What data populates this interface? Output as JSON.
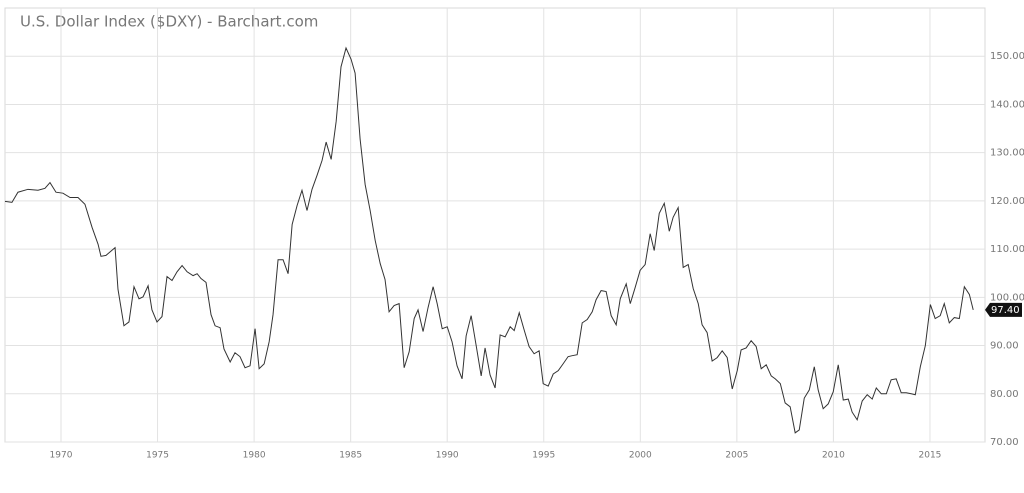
{
  "chart_data": {
    "type": "line",
    "title": "U.S. Dollar Index ($DXY) - Barchart.com",
    "xlim": [
      1967.1,
      2017.85
    ],
    "ylim": [
      70,
      160
    ],
    "xticks": [
      1970,
      1975,
      1980,
      1985,
      1990,
      1995,
      2000,
      2005,
      2010,
      2015
    ],
    "yticks": [
      {
        "value": 70,
        "label": "70.00"
      },
      {
        "value": 80,
        "label": "80.00"
      },
      {
        "value": 90,
        "label": "90.00"
      },
      {
        "value": 100,
        "label": "100.00"
      },
      {
        "value": 110,
        "label": "110.00"
      },
      {
        "value": 120,
        "label": "120.00"
      },
      {
        "value": 130,
        "label": "130.00"
      },
      {
        "value": 140,
        "label": "140.00"
      },
      {
        "value": 150,
        "label": "150.00"
      }
    ],
    "grid": true,
    "current": {
      "value": 97.4,
      "label": "97.40"
    },
    "series": [
      {
        "name": "$DXY",
        "color": "#333333",
        "x": [
          1967.1,
          1967.46,
          1967.77,
          1968.29,
          1968.81,
          1969.17,
          1969.43,
          1969.74,
          1970.1,
          1970.47,
          1970.88,
          1971.24,
          1971.61,
          1971.92,
          1972.07,
          1972.33,
          1972.8,
          1972.95,
          1973.26,
          1973.52,
          1973.78,
          1974.04,
          1974.25,
          1974.51,
          1974.71,
          1974.97,
          1975.23,
          1975.49,
          1975.75,
          1976.01,
          1976.27,
          1976.53,
          1976.84,
          1977.05,
          1977.25,
          1977.51,
          1977.77,
          1977.98,
          1978.24,
          1978.44,
          1978.76,
          1979.01,
          1979.27,
          1979.53,
          1979.79,
          1980.05,
          1980.26,
          1980.52,
          1980.78,
          1980.98,
          1981.24,
          1981.5,
          1981.76,
          1981.97,
          1982.23,
          1982.48,
          1982.74,
          1983.0,
          1983.26,
          1983.52,
          1983.73,
          1983.99,
          1984.25,
          1984.5,
          1984.76,
          1985.02,
          1985.23,
          1985.49,
          1985.75,
          1986.01,
          1986.27,
          1986.53,
          1986.78,
          1986.99,
          1987.25,
          1987.51,
          1987.77,
          1988.03,
          1988.29,
          1988.49,
          1988.75,
          1989.01,
          1989.27,
          1989.48,
          1989.74,
          1990.0,
          1990.25,
          1990.51,
          1990.77,
          1990.98,
          1991.24,
          1991.5,
          1991.76,
          1991.96,
          1992.22,
          1992.48,
          1992.74,
          1993.0,
          1993.26,
          1993.47,
          1993.73,
          1993.98,
          1994.24,
          1994.5,
          1994.76,
          1994.97,
          1995.23,
          1995.49,
          1995.75,
          1996.0,
          1996.26,
          1996.47,
          1996.73,
          1996.99,
          1997.25,
          1997.51,
          1997.71,
          1997.97,
          1998.23,
          1998.49,
          1998.75,
          1998.96,
          1999.27,
          1999.48,
          1999.73,
          1999.99,
          2000.25,
          2000.51,
          2000.72,
          2000.98,
          2001.24,
          2001.5,
          2001.7,
          2001.96,
          2002.22,
          2002.48,
          2002.74,
          2003.0,
          2003.2,
          2003.46,
          2003.72,
          2003.98,
          2004.24,
          2004.5,
          2004.76,
          2005.02,
          2005.22,
          2005.48,
          2005.74,
          2006.0,
          2006.26,
          2006.52,
          2006.78,
          2006.99,
          2007.25,
          2007.5,
          2007.76,
          2008.02,
          2008.23,
          2008.49,
          2008.75,
          2009.01,
          2009.21,
          2009.47,
          2009.73,
          2009.99,
          2010.25,
          2010.51,
          2010.77,
          2010.97,
          2011.23,
          2011.49,
          2011.75,
          2012.01,
          2012.22,
          2012.48,
          2012.74,
          2012.99,
          2013.25,
          2013.51,
          2013.77,
          2014.03,
          2014.24,
          2014.5,
          2014.76,
          2015.02,
          2015.27,
          2015.53,
          2015.74,
          2016.0,
          2016.26,
          2016.52,
          2016.78,
          2017.04,
          2017.24
        ],
        "values": [
          119.9,
          119.7,
          121.8,
          122.4,
          122.2,
          122.6,
          123.8,
          121.8,
          121.6,
          120.7,
          120.7,
          119.3,
          114.5,
          111.0,
          108.5,
          108.7,
          110.3,
          101.7,
          94.1,
          94.9,
          102.2,
          99.7,
          100.1,
          102.4,
          97.4,
          94.9,
          96.0,
          104.3,
          103.5,
          105.3,
          106.6,
          105.3,
          104.5,
          104.9,
          103.9,
          103.1,
          96.4,
          94.1,
          93.7,
          89.3,
          86.6,
          88.5,
          87.7,
          85.4,
          85.8,
          93.5,
          85.2,
          86.2,
          90.8,
          96.4,
          107.8,
          107.8,
          104.9,
          115.1,
          119.1,
          122.2,
          118.0,
          122.4,
          125.3,
          128.4,
          132.2,
          128.6,
          136.5,
          147.8,
          151.7,
          149.4,
          146.5,
          132.8,
          123.4,
          118.0,
          111.8,
          107.0,
          103.7,
          97.0,
          98.3,
          98.7,
          85.4,
          88.7,
          95.6,
          97.4,
          92.9,
          97.9,
          102.2,
          98.7,
          93.5,
          93.9,
          90.8,
          85.8,
          83.1,
          92.0,
          96.2,
          90.0,
          83.7,
          89.5,
          83.9,
          81.2,
          92.2,
          91.8,
          93.9,
          93.1,
          96.8,
          93.3,
          89.8,
          88.3,
          88.9,
          82.1,
          81.6,
          84.1,
          84.8,
          86.2,
          87.7,
          87.9,
          88.1,
          94.7,
          95.4,
          97.0,
          99.5,
          101.4,
          101.2,
          96.2,
          94.3,
          99.7,
          102.8,
          98.7,
          102.0,
          105.6,
          106.8,
          113.2,
          109.7,
          117.4,
          119.5,
          113.7,
          116.6,
          118.6,
          106.2,
          106.8,
          101.8,
          98.7,
          94.3,
          92.7,
          86.8,
          87.5,
          88.9,
          87.5,
          81.0,
          84.8,
          89.1,
          89.5,
          91.0,
          89.8,
          85.2,
          86.0,
          83.7,
          83.1,
          82.1,
          78.1,
          77.3,
          71.9,
          72.5,
          79.1,
          80.8,
          85.6,
          80.8,
          76.9,
          77.9,
          80.4,
          86.0,
          78.7,
          78.9,
          76.2,
          74.6,
          78.5,
          79.8,
          78.9,
          81.2,
          80.0,
          80.0,
          82.9,
          83.1,
          80.2,
          80.2,
          80.0,
          79.8,
          85.6,
          90.0,
          98.5,
          95.6,
          96.2,
          98.7,
          94.7,
          95.8,
          95.6,
          102.2,
          100.6,
          97.4
        ]
      }
    ]
  }
}
